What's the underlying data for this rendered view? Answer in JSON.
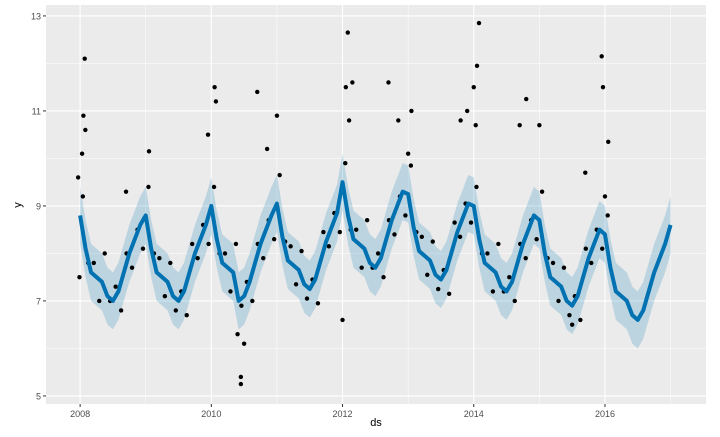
{
  "chart_data": {
    "type": "line",
    "xlabel": "ds",
    "ylabel": "y",
    "xlim": [
      2007.48,
      2017.54
    ],
    "ylim": [
      4.83,
      13.23
    ],
    "x_ticks": [
      "2008",
      "2010",
      "2012",
      "2014",
      "2016"
    ],
    "y_ticks": [
      "5",
      "7",
      "9",
      "11",
      "13"
    ],
    "grid": true,
    "colors": {
      "panel": "#EBEBEB",
      "grid": "#FFFFFF",
      "forecast": "#0072B2",
      "interval": "#0072B2",
      "points": "#000000"
    },
    "forecast_interval_halfwidth": 0.6,
    "forecast": [
      {
        "year": 2008,
        "yhat": [
          8.8,
          8.1,
          7.6,
          7.5,
          7.4,
          7.1,
          7.0,
          7.2,
          7.6,
          8.0,
          8.3,
          8.6
        ]
      },
      {
        "year": 2009,
        "yhat": [
          8.8,
          8.1,
          7.6,
          7.5,
          7.4,
          7.1,
          7.0,
          7.2,
          7.6,
          8.0,
          8.3,
          8.6
        ]
      },
      {
        "year": 2010,
        "yhat": [
          9.0,
          8.3,
          7.8,
          7.7,
          7.6,
          7.0,
          7.1,
          7.4,
          7.8,
          8.2,
          8.5,
          8.8
        ]
      },
      {
        "year": 2011,
        "yhat": [
          9.05,
          8.35,
          7.85,
          7.75,
          7.65,
          7.35,
          7.25,
          7.45,
          7.85,
          8.25,
          8.55,
          8.85
        ]
      },
      {
        "year": 2012,
        "yhat": [
          9.5,
          8.8,
          8.3,
          8.2,
          8.1,
          7.8,
          7.7,
          7.9,
          8.3,
          8.7,
          9.0,
          9.3
        ]
      },
      {
        "year": 2013,
        "yhat": [
          9.25,
          8.55,
          8.05,
          7.95,
          7.85,
          7.55,
          7.45,
          7.65,
          8.05,
          8.45,
          8.75,
          9.05
        ]
      },
      {
        "year": 2014,
        "yhat": [
          9.0,
          8.3,
          7.8,
          7.7,
          7.6,
          7.3,
          7.2,
          7.4,
          7.8,
          8.2,
          8.5,
          8.8
        ]
      },
      {
        "year": 2015,
        "yhat": [
          8.7,
          8.0,
          7.5,
          7.4,
          7.3,
          7.0,
          6.9,
          7.1,
          7.5,
          7.9,
          8.2,
          8.5
        ]
      },
      {
        "year": 2016,
        "yhat": [
          8.4,
          7.7,
          7.2,
          7.1,
          7.0,
          6.7,
          6.6,
          6.8,
          7.2,
          7.6,
          7.9,
          8.2
        ]
      },
      {
        "year": 2017,
        "yhat": [
          8.6
        ]
      }
    ],
    "observed_monthly": [
      {
        "year": 2008,
        "y": [
          9.2,
          7.8,
          7.8,
          7.0,
          8.0,
          7.0,
          7.3,
          6.8,
          8.0,
          7.7,
          8.5,
          8.1
        ]
      },
      {
        "year": 2009,
        "y": [
          9.4,
          8.0,
          7.9,
          7.1,
          7.8,
          6.8,
          7.2,
          6.7,
          8.2,
          7.9,
          8.6,
          8.2
        ]
      },
      {
        "year": 2010,
        "y": [
          9.4,
          8.0,
          8.0,
          7.2,
          8.2,
          6.9,
          7.4,
          7.0,
          8.2,
          7.9,
          8.7,
          8.3
        ]
      },
      {
        "year": 2011,
        "y": [
          9.65,
          8.25,
          8.15,
          7.35,
          8.05,
          7.05,
          7.45,
          6.95,
          8.45,
          8.15,
          8.85,
          8.45
        ]
      },
      {
        "year": 2012,
        "y": [
          9.9,
          8.5,
          8.5,
          7.7,
          8.7,
          7.7,
          8.0,
          7.5,
          8.7,
          8.4,
          9.2,
          8.8
        ]
      },
      {
        "year": 2013,
        "y": [
          9.85,
          8.45,
          8.35,
          7.55,
          8.25,
          7.25,
          7.65,
          7.15,
          8.65,
          8.35,
          9.05,
          8.65
        ]
      },
      {
        "year": 2014,
        "y": [
          9.4,
          8.0,
          8.0,
          7.2,
          8.2,
          7.2,
          7.5,
          7.0,
          8.2,
          7.9,
          8.7,
          8.3
        ]
      },
      {
        "year": 2015,
        "y": [
          9.3,
          7.9,
          7.8,
          7.0,
          7.7,
          6.7,
          7.1,
          6.6,
          8.1,
          7.8,
          8.5,
          8.1
        ]
      },
      {
        "year": 2016,
        "y": [
          8.8
        ]
      }
    ],
    "observed_extra": [
      [
        2008.07,
        12.1
      ],
      [
        2008.05,
        10.9
      ],
      [
        2008.08,
        10.6
      ],
      [
        2008.03,
        10.1
      ],
      [
        2007.97,
        9.6
      ],
      [
        2007.99,
        7.5
      ],
      [
        2009.05,
        10.15
      ],
      [
        2008.7,
        9.3
      ],
      [
        2010.05,
        11.5
      ],
      [
        2010.07,
        11.2
      ],
      [
        2010.7,
        11.4
      ],
      [
        2009.95,
        10.5
      ],
      [
        2010.45,
        5.4
      ],
      [
        2010.45,
        5.25
      ],
      [
        2010.5,
        6.1
      ],
      [
        2010.4,
        6.3
      ],
      [
        2011.0,
        10.9
      ],
      [
        2010.85,
        10.2
      ],
      [
        2012.08,
        12.65
      ],
      [
        2012.0,
        6.6
      ],
      [
        2012.15,
        11.6
      ],
      [
        2012.05,
        11.5
      ],
      [
        2012.1,
        10.8
      ],
      [
        2012.7,
        11.6
      ],
      [
        2012.85,
        10.8
      ],
      [
        2013.05,
        11.0
      ],
      [
        2013.0,
        10.1
      ],
      [
        2013.8,
        10.8
      ],
      [
        2013.9,
        11.0
      ],
      [
        2014.08,
        12.85
      ],
      [
        2014.05,
        11.95
      ],
      [
        2014.0,
        11.5
      ],
      [
        2014.03,
        10.7
      ],
      [
        2014.8,
        11.25
      ],
      [
        2014.7,
        10.7
      ],
      [
        2015.0,
        10.7
      ],
      [
        2015.95,
        12.15
      ],
      [
        2015.97,
        11.5
      ],
      [
        2016.05,
        10.35
      ],
      [
        2015.7,
        9.7
      ],
      [
        2015.5,
        6.5
      ],
      [
        2016.0,
        9.2
      ]
    ]
  }
}
